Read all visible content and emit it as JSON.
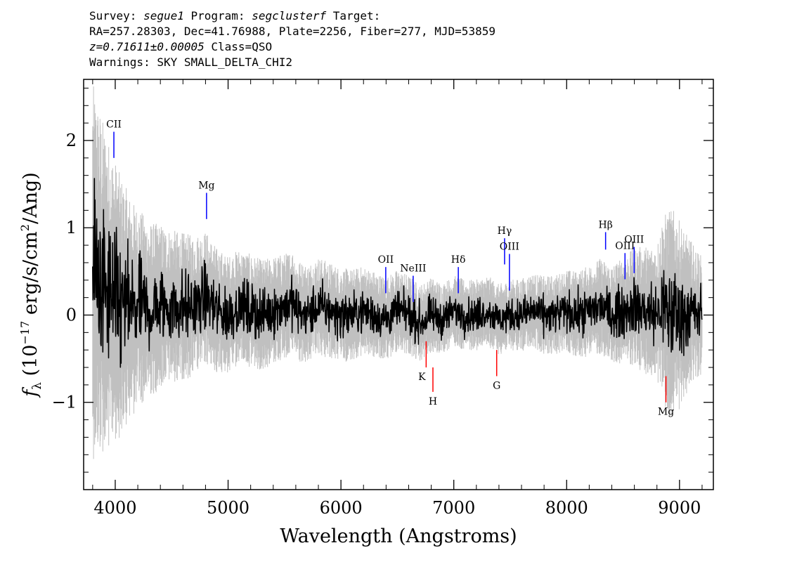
{
  "header": {
    "line1": {
      "survey_label": "Survey: ",
      "survey": "segue1",
      "program_label": " Program: ",
      "program": "segclusterf",
      "target_label": " Target:"
    },
    "line2": "RA=257.28303, Dec=41.76988, Plate=2256, Fiber=277, MJD=53859",
    "line3": {
      "redshift": "z=0.71611±0.00005",
      "class": " Class=QSO"
    },
    "line4": "Warnings: SKY SMALL_DELTA_CHI2"
  },
  "chart_data": {
    "type": "line",
    "xlabel": "Wavelength (Angstroms)",
    "ylabel": "f_λ (10^-17 erg/s/cm^2/Ang)",
    "xlim": [
      3720,
      9300
    ],
    "ylim": [
      -2.0,
      2.7
    ],
    "x_ticks": [
      4000,
      5000,
      6000,
      7000,
      8000,
      9000
    ],
    "x_tick_labels": [
      "4000",
      "5000",
      "6000",
      "7000",
      "8000",
      "9000"
    ],
    "y_ticks": [
      -1,
      0,
      1,
      2
    ],
    "y_tick_labels": [
      "−1",
      "0",
      "1",
      "2"
    ],
    "grid": false,
    "colors": {
      "flux": "#000000",
      "error": "#c0c0c0",
      "emission": "#0000ff",
      "absorption": "#ff0000"
    },
    "series": [
      {
        "kind": "flux",
        "x": [
          3800,
          3850,
          3900,
          3950,
          4000,
          4050,
          4100,
          4150,
          4200,
          4300,
          4400,
          4500,
          4600,
          4700,
          4750,
          4800,
          4900,
          5000,
          5100,
          5200,
          5300,
          5400,
          5500,
          5580,
          5600,
          5700,
          5800,
          5900,
          6000,
          6100,
          6200,
          6300,
          6400,
          6500,
          6600,
          6700,
          6800,
          6900,
          7000,
          7100,
          7200,
          7300,
          7400,
          7500,
          7600,
          7700,
          7800,
          7900,
          8000,
          8100,
          8200,
          8300,
          8400,
          8500,
          8600,
          8700,
          8800,
          8850,
          8900,
          8950,
          9000,
          9050,
          9100,
          9150,
          9200
        ],
        "y": [
          0.5,
          0.4,
          0.3,
          0.2,
          0.15,
          0.1,
          0.1,
          0.05,
          0.1,
          0.05,
          0.1,
          0.1,
          0.1,
          0.1,
          0.15,
          0.2,
          0.05,
          0.0,
          0.1,
          0.05,
          0.0,
          0.05,
          0.1,
          0.15,
          0.05,
          0.0,
          0.1,
          0.05,
          0.0,
          0.0,
          0.05,
          0.0,
          -0.05,
          0.05,
          0.0,
          -0.1,
          0.0,
          -0.05,
          0.05,
          0.0,
          0.0,
          0.05,
          -0.05,
          0.0,
          0.0,
          0.05,
          0.0,
          0.0,
          0.05,
          0.0,
          0.05,
          0.1,
          0.0,
          0.05,
          0.1,
          0.05,
          0.0,
          0.1,
          0.0,
          0.05,
          0.0,
          0.0,
          0.05,
          0.0,
          0.0
        ]
      },
      {
        "kind": "error",
        "x": [
          3800,
          3900,
          4000,
          4100,
          4200,
          4300,
          4500,
          4700,
          5000,
          5500,
          6000,
          6500,
          7000,
          7500,
          8000,
          8500,
          8800,
          8900,
          9000,
          9100,
          9200
        ],
        "y": [
          1.6,
          1.4,
          1.2,
          1.0,
          0.85,
          0.75,
          0.65,
          0.6,
          0.5,
          0.45,
          0.4,
          0.35,
          0.3,
          0.3,
          0.35,
          0.45,
          0.6,
          0.9,
          0.8,
          0.6,
          0.5
        ]
      }
    ],
    "emission_lines": [
      {
        "label": "CII",
        "x": 3988,
        "y1": 2.1,
        "y2": 1.8
      },
      {
        "label": "Mg",
        "x": 4809,
        "y1": 1.4,
        "y2": 1.1
      },
      {
        "label": "OII",
        "x": 6397,
        "y1": 0.55,
        "y2": 0.25
      },
      {
        "label": "NeIII",
        "x": 6640,
        "y1": 0.45,
        "y2": 0.15
      },
      {
        "label": "Hδ",
        "x": 7040,
        "y1": 0.55,
        "y2": 0.25
      },
      {
        "label": "Hγ",
        "x": 7450,
        "y1": 0.88,
        "y2": 0.58
      },
      {
        "label": "OIII",
        "x": 7493,
        "y1": 0.7,
        "y2": 0.28
      },
      {
        "label": "Hβ",
        "x": 8345,
        "y1": 0.95,
        "y2": 0.75
      },
      {
        "label": "OIII",
        "x": 8517,
        "y1": 0.71,
        "y2": 0.41
      },
      {
        "label": "OIII",
        "x": 8598,
        "y1": 0.78,
        "y2": 0.48
      }
    ],
    "absorption_lines": [
      {
        "label": "K",
        "x": 6755,
        "y1": -0.3,
        "y2": -0.6
      },
      {
        "label": "H",
        "x": 6815,
        "y1": -0.6,
        "y2": -0.88
      },
      {
        "label": "G",
        "x": 7380,
        "y1": -0.4,
        "y2": -0.7
      },
      {
        "label": "Mg",
        "x": 8880,
        "y1": -0.7,
        "y2": -1.0
      }
    ]
  }
}
